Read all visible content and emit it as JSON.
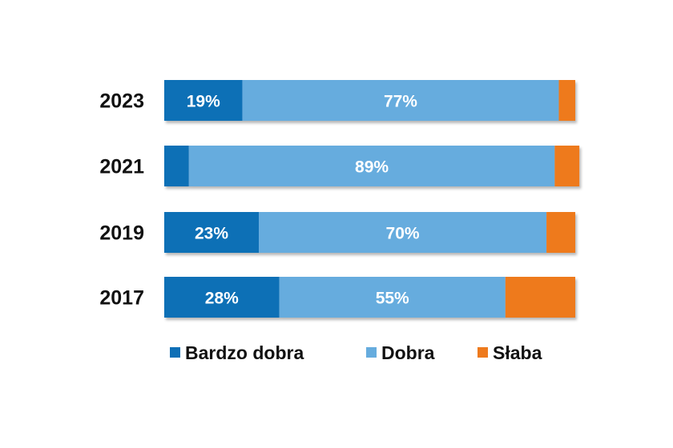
{
  "chart_data": {
    "type": "bar",
    "orientation": "horizontal",
    "stacked": true,
    "categories": [
      "2023",
      "2021",
      "2019",
      "2017"
    ],
    "series": [
      {
        "name": "Bardzo dobra",
        "color": "#0E6FB6",
        "values": [
          19,
          6,
          23,
          28
        ],
        "labels": [
          "19%",
          "",
          "23%",
          "28%"
        ]
      },
      {
        "name": "Dobra",
        "color": "#66ACDE",
        "values": [
          77,
          89,
          70,
          55
        ],
        "labels": [
          "77%",
          "89%",
          "70%",
          "55%"
        ]
      },
      {
        "name": "Słaba",
        "color": "#EE7A1D",
        "values": [
          4,
          6,
          7,
          17
        ],
        "labels": [
          "",
          "",
          "",
          ""
        ]
      }
    ],
    "xlim": [
      0,
      100
    ],
    "grid": false,
    "legend_position": "bottom"
  }
}
